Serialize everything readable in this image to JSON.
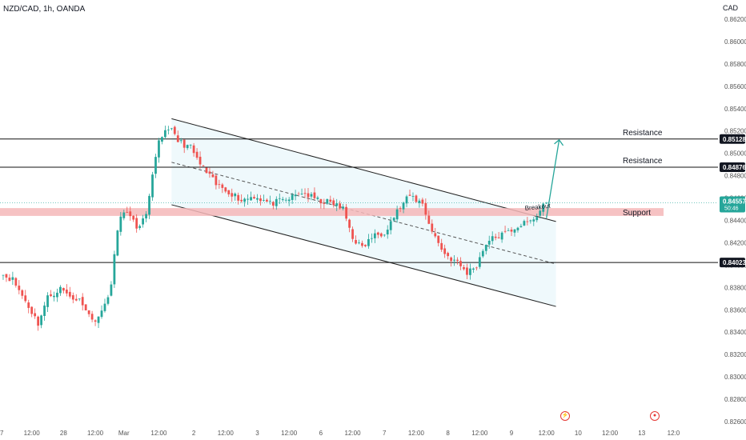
{
  "header": {
    "symbol": "NZD/CAD, 1h, OANDA",
    "currency": "CAD"
  },
  "colors": {
    "up": "#26a69a",
    "down": "#ef5350",
    "channel_fill": "#e8f6fb",
    "support_zone": "#f5b7b8",
    "arrow": "#26a69a",
    "current_price": "#26a69a"
  },
  "chart_data": {
    "type": "candlestick",
    "title": "NZD/CAD, 1h, OANDA",
    "ylim": [
      0.826,
      0.863
    ],
    "x_range": [
      0,
      226
    ],
    "y_ticks": [
      "0.86200",
      "0.86000",
      "0.85800",
      "0.85600",
      "0.85400",
      "0.85200",
      "0.85000",
      "0.84800",
      "0.84600",
      "0.84400",
      "0.84200",
      "0.84000",
      "0.83800",
      "0.83600",
      "0.83400",
      "0.83200",
      "0.83000",
      "0.82800",
      "0.82600"
    ],
    "x_ticks": [
      {
        "label": "27",
        "x": 0
      },
      {
        "label": "12:00",
        "x": 10
      },
      {
        "label": "28",
        "x": 20
      },
      {
        "label": "12:00",
        "x": 30
      },
      {
        "label": "Mar",
        "x": 39
      },
      {
        "label": "12:00",
        "x": 50
      },
      {
        "label": "2",
        "x": 61
      },
      {
        "label": "12:00",
        "x": 71
      },
      {
        "label": "3",
        "x": 81
      },
      {
        "label": "12:00",
        "x": 91
      },
      {
        "label": "6",
        "x": 101
      },
      {
        "label": "12:00",
        "x": 111
      },
      {
        "label": "7",
        "x": 121
      },
      {
        "label": "12:00",
        "x": 131
      },
      {
        "label": "8",
        "x": 141
      },
      {
        "label": "12:00",
        "x": 151
      },
      {
        "label": "9",
        "x": 161
      },
      {
        "label": "12:00",
        "x": 172
      },
      {
        "label": "10",
        "x": 182
      },
      {
        "label": "12:00",
        "x": 192
      },
      {
        "label": "13",
        "x": 202
      },
      {
        "label": "12:0",
        "x": 212
      }
    ],
    "horizontal_levels": [
      {
        "label": "Resistance",
        "value": 0.85128,
        "price_label": "0.85128"
      },
      {
        "label": "Resistance",
        "value": 0.84876,
        "price_label": "0.84876"
      },
      {
        "label": "",
        "value": 0.84023,
        "price_label": "0.84023"
      }
    ],
    "support_zone": {
      "label": "Support",
      "low": 0.8444,
      "high": 0.8451
    },
    "current_price": {
      "value": 0.84557,
      "label": "0.84557",
      "countdown": "50:46"
    },
    "channel": {
      "upper": [
        [
          54,
          0.8531
        ],
        [
          175,
          0.8439
        ]
      ],
      "lower": [
        [
          54,
          0.8454
        ],
        [
          175,
          0.8363
        ]
      ],
      "mid": [
        [
          54,
          0.8492
        ],
        [
          175,
          0.8401
        ]
      ]
    },
    "breakout_label": "Breakout",
    "projection": [
      [
        172,
        0.8442
      ],
      [
        176,
        0.8512
      ]
    ],
    "anchors": [
      [
        0,
        0.8393
      ],
      [
        4,
        0.8387
      ],
      [
        8,
        0.8368
      ],
      [
        12,
        0.8348
      ],
      [
        15,
        0.8371
      ],
      [
        19,
        0.8379
      ],
      [
        22,
        0.8372
      ],
      [
        26,
        0.8367
      ],
      [
        29,
        0.835
      ],
      [
        32,
        0.8357
      ],
      [
        35,
        0.8382
      ],
      [
        37,
        0.8432
      ],
      [
        39,
        0.845
      ],
      [
        43,
        0.8434
      ],
      [
        46,
        0.8443
      ],
      [
        48,
        0.8478
      ],
      [
        50,
        0.8512
      ],
      [
        53,
        0.8524
      ],
      [
        56,
        0.8511
      ],
      [
        60,
        0.8505
      ],
      [
        63,
        0.849
      ],
      [
        68,
        0.8472
      ],
      [
        72,
        0.8466
      ],
      [
        76,
        0.8458
      ],
      [
        80,
        0.8462
      ],
      [
        85,
        0.8455
      ],
      [
        90,
        0.8458
      ],
      [
        95,
        0.8465
      ],
      [
        100,
        0.8458
      ],
      [
        105,
        0.8455
      ],
      [
        108,
        0.845
      ],
      [
        111,
        0.8425
      ],
      [
        114,
        0.8415
      ],
      [
        117,
        0.8425
      ],
      [
        121,
        0.843
      ],
      [
        125,
        0.8448
      ],
      [
        129,
        0.8462
      ],
      [
        133,
        0.8455
      ],
      [
        136,
        0.843
      ],
      [
        140,
        0.841
      ],
      [
        144,
        0.8402
      ],
      [
        147,
        0.8393
      ],
      [
        150,
        0.84
      ],
      [
        153,
        0.842
      ],
      [
        156,
        0.8425
      ],
      [
        159,
        0.8428
      ],
      [
        163,
        0.8435
      ],
      [
        166,
        0.8438
      ],
      [
        169,
        0.8443
      ],
      [
        171,
        0.8455
      ]
    ]
  }
}
